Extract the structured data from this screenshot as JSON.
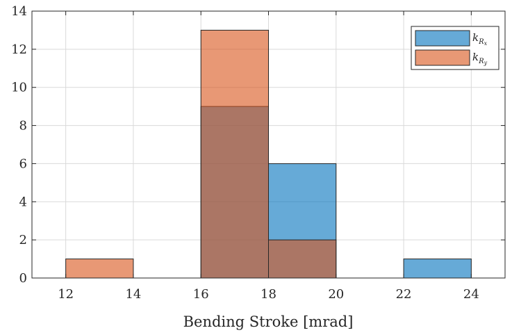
{
  "chart_data": {
    "type": "bar",
    "subtype": "histogram-overlap",
    "xlabel": "Bending Stroke [mrad]",
    "ylabel": "",
    "title": "",
    "xlim": [
      11,
      25
    ],
    "ylim": [
      0,
      14
    ],
    "xticks": [
      12,
      14,
      16,
      18,
      20,
      22,
      24
    ],
    "yticks": [
      0,
      2,
      4,
      6,
      8,
      10,
      12,
      14
    ],
    "grid": true,
    "legend_position": "top-right",
    "bin_edges": [
      12,
      14,
      16,
      18,
      20,
      22,
      24
    ],
    "series": [
      {
        "name": "k_{R_x}",
        "color": "#0072BD",
        "values": [
          0,
          0,
          9,
          6,
          0,
          1
        ]
      },
      {
        "name": "k_{R_y}",
        "color": "#D95319",
        "values": [
          1,
          0,
          13,
          2,
          0,
          0
        ]
      }
    ],
    "legend": [
      {
        "base": "k",
        "sub": "R",
        "subsub": "x",
        "color": "#0072BD"
      },
      {
        "base": "k",
        "sub": "R",
        "subsub": "y",
        "color": "#D95319"
      }
    ]
  }
}
